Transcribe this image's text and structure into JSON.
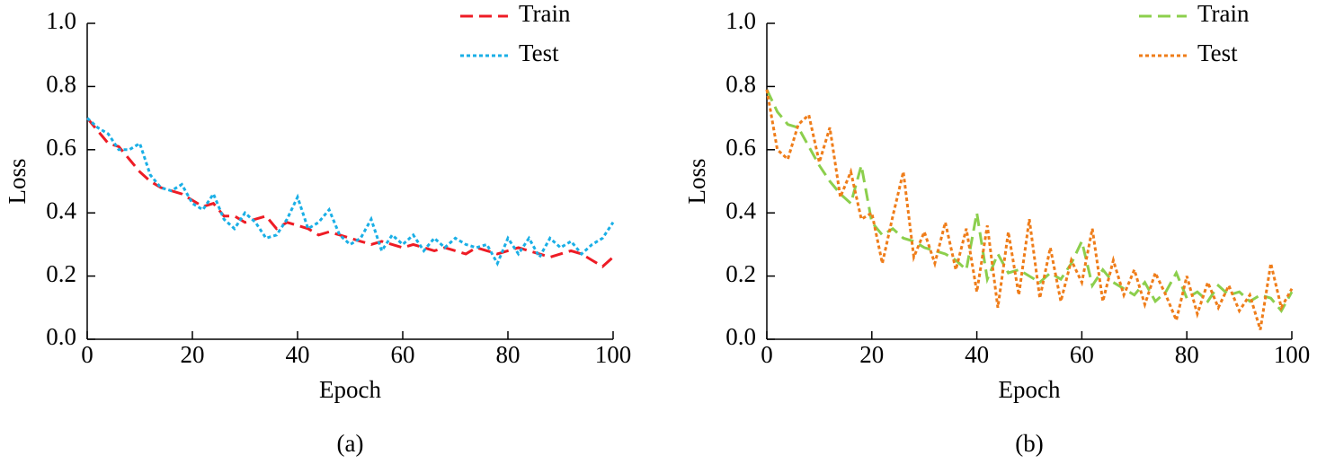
{
  "chart_data": [
    {
      "type": "line",
      "caption": "(a)",
      "xlabel": "Epoch",
      "ylabel": "Loss",
      "xlim": [
        0,
        100
      ],
      "ylim": [
        0,
        1
      ],
      "xticks": [
        0,
        20,
        40,
        60,
        80,
        100
      ],
      "yticks": [
        {
          "value": 0,
          "label": "0.0"
        },
        0.2,
        0.4,
        0.6,
        0.8,
        {
          "value": 1,
          "label": "1.0"
        }
      ],
      "legend": "top-right",
      "x": [
        0,
        2,
        4,
        6,
        8,
        10,
        12,
        14,
        16,
        18,
        20,
        22,
        24,
        26,
        28,
        30,
        32,
        34,
        36,
        38,
        40,
        42,
        44,
        46,
        48,
        50,
        52,
        54,
        56,
        58,
        60,
        62,
        64,
        66,
        68,
        70,
        72,
        74,
        76,
        78,
        80,
        82,
        84,
        86,
        88,
        90,
        92,
        94,
        96,
        98,
        100
      ],
      "series": [
        {
          "name": "Train",
          "color": "#ee1c25",
          "linestyle": "dashed",
          "values": [
            0.7,
            0.66,
            0.62,
            0.61,
            0.57,
            0.53,
            0.5,
            0.48,
            0.47,
            0.46,
            0.44,
            0.42,
            0.43,
            0.39,
            0.39,
            0.37,
            0.38,
            0.39,
            0.35,
            0.37,
            0.36,
            0.35,
            0.33,
            0.34,
            0.33,
            0.32,
            0.31,
            0.3,
            0.31,
            0.3,
            0.29,
            0.3,
            0.29,
            0.28,
            0.29,
            0.28,
            0.27,
            0.29,
            0.28,
            0.27,
            0.28,
            0.29,
            0.28,
            0.27,
            0.26,
            0.27,
            0.28,
            0.27,
            0.25,
            0.23,
            0.26
          ]
        },
        {
          "name": "Test",
          "color": "#1aafe6",
          "linestyle": "dotted",
          "values": [
            0.7,
            0.67,
            0.65,
            0.6,
            0.6,
            0.62,
            0.52,
            0.48,
            0.47,
            0.49,
            0.43,
            0.41,
            0.46,
            0.38,
            0.35,
            0.4,
            0.37,
            0.32,
            0.33,
            0.38,
            0.45,
            0.35,
            0.37,
            0.41,
            0.33,
            0.3,
            0.32,
            0.38,
            0.28,
            0.33,
            0.3,
            0.33,
            0.28,
            0.32,
            0.29,
            0.32,
            0.3,
            0.29,
            0.3,
            0.24,
            0.32,
            0.27,
            0.32,
            0.26,
            0.32,
            0.29,
            0.31,
            0.27,
            0.3,
            0.32,
            0.37
          ]
        }
      ]
    },
    {
      "type": "line",
      "caption": "(b)",
      "xlabel": "Epoch",
      "ylabel": "Loss",
      "xlim": [
        0,
        100
      ],
      "ylim": [
        0,
        1
      ],
      "xticks": [
        0,
        20,
        40,
        60,
        80,
        100
      ],
      "yticks": [
        {
          "value": 0,
          "label": "0.0"
        },
        0.2,
        0.4,
        0.6,
        0.8,
        {
          "value": 1,
          "label": "1.0"
        }
      ],
      "legend": "top-right",
      "x": [
        0,
        2,
        4,
        6,
        8,
        10,
        12,
        14,
        16,
        18,
        20,
        22,
        24,
        26,
        28,
        30,
        32,
        34,
        36,
        38,
        40,
        42,
        44,
        46,
        48,
        50,
        52,
        54,
        56,
        58,
        60,
        62,
        64,
        66,
        68,
        70,
        72,
        74,
        76,
        78,
        80,
        82,
        84,
        86,
        88,
        90,
        92,
        94,
        96,
        98,
        100
      ],
      "series": [
        {
          "name": "Train",
          "color": "#8ccf4d",
          "linestyle": "dashed",
          "values": [
            0.79,
            0.72,
            0.68,
            0.67,
            0.61,
            0.55,
            0.5,
            0.46,
            0.43,
            0.55,
            0.37,
            0.33,
            0.35,
            0.32,
            0.31,
            0.29,
            0.28,
            0.27,
            0.25,
            0.22,
            0.4,
            0.19,
            0.27,
            0.21,
            0.22,
            0.2,
            0.18,
            0.21,
            0.19,
            0.24,
            0.31,
            0.17,
            0.22,
            0.18,
            0.16,
            0.14,
            0.18,
            0.12,
            0.15,
            0.21,
            0.13,
            0.15,
            0.12,
            0.17,
            0.14,
            0.15,
            0.12,
            0.14,
            0.13,
            0.09,
            0.15
          ]
        },
        {
          "name": "Test",
          "color": "#ef7d1a",
          "linestyle": "dotted",
          "values": [
            0.79,
            0.6,
            0.57,
            0.68,
            0.71,
            0.56,
            0.67,
            0.45,
            0.53,
            0.38,
            0.4,
            0.24,
            0.39,
            0.53,
            0.26,
            0.34,
            0.24,
            0.37,
            0.22,
            0.35,
            0.15,
            0.36,
            0.1,
            0.34,
            0.14,
            0.38,
            0.13,
            0.29,
            0.12,
            0.25,
            0.18,
            0.35,
            0.12,
            0.25,
            0.14,
            0.22,
            0.11,
            0.21,
            0.14,
            0.06,
            0.2,
            0.08,
            0.18,
            0.1,
            0.17,
            0.09,
            0.14,
            0.03,
            0.24,
            0.1,
            0.16
          ]
        }
      ]
    }
  ]
}
